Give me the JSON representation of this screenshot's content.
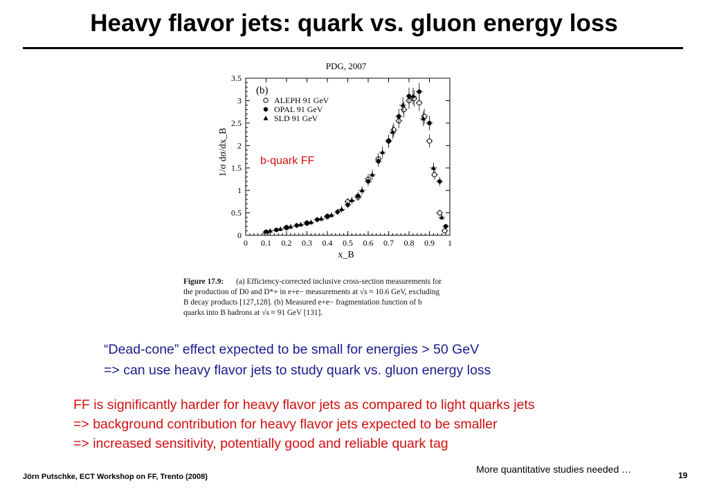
{
  "title": "Heavy flavor jets: quark vs. gluon energy loss",
  "figure": {
    "source": "PDG, 2007",
    "panel_label": "(b)",
    "annotation": "b-quark FF",
    "annotation_color": "#d01010",
    "caption_label": "Figure 17.9:",
    "caption_lines": [
      "(a) Efficiency-corrected inclusive cross-section measurements for",
      "the production of D0 and D*+ in e+e− measurements at √s ≈ 10.6 GeV, excluding",
      "B decay products [127,128].   (b) Measured e+e− fragmentation function of b",
      "quarks into B hadrons at √s ≈ 91 GeV [131]."
    ]
  },
  "chart_data": {
    "type": "scatter",
    "xlabel": "x_B",
    "ylabel": "1/σ dσ/dx_B",
    "xlim": [
      0,
      1
    ],
    "ylim": [
      0,
      3.5
    ],
    "x_ticks": [
      "0",
      "0.1",
      "0.2",
      "0.3",
      "0.4",
      "0.5",
      "0.6",
      "0.7",
      "0.8",
      "0.9",
      "1"
    ],
    "y_ticks": [
      "0",
      "0.5",
      "1",
      "1.5",
      "2",
      "2.5",
      "3",
      "3.5"
    ],
    "legend_position": "top-left",
    "series": [
      {
        "name": "ALEPH 91 GeV",
        "marker": "open-circle",
        "x": [
          0.1,
          0.2,
          0.3,
          0.4,
          0.5,
          0.55,
          0.6,
          0.65,
          0.7,
          0.725,
          0.75,
          0.775,
          0.8,
          0.825,
          0.85,
          0.875,
          0.9,
          0.925,
          0.95,
          0.975
        ],
        "y": [
          0.05,
          0.17,
          0.27,
          0.42,
          0.75,
          0.85,
          1.25,
          1.7,
          2.1,
          2.35,
          2.55,
          2.8,
          3.0,
          3.05,
          2.95,
          2.65,
          2.1,
          1.35,
          0.5,
          0.1
        ]
      },
      {
        "name": "OPAL 91 GeV",
        "marker": "filled-circle",
        "x": [
          0.1,
          0.15,
          0.2,
          0.25,
          0.3,
          0.35,
          0.4,
          0.45,
          0.5,
          0.55,
          0.6,
          0.65,
          0.7,
          0.75,
          0.8,
          0.85,
          0.9,
          0.95,
          0.98
        ],
        "y": [
          0.08,
          0.12,
          0.18,
          0.22,
          0.28,
          0.35,
          0.42,
          0.52,
          0.68,
          0.88,
          1.2,
          1.65,
          2.1,
          2.65,
          3.1,
          3.2,
          2.5,
          1.2,
          0.2
        ]
      },
      {
        "name": "SLD 91 GeV",
        "marker": "filled-triangle",
        "x": [
          0.12,
          0.17,
          0.22,
          0.27,
          0.32,
          0.37,
          0.42,
          0.47,
          0.52,
          0.57,
          0.62,
          0.67,
          0.72,
          0.77,
          0.82,
          0.87,
          0.92,
          0.96
        ],
        "y": [
          0.1,
          0.14,
          0.19,
          0.24,
          0.29,
          0.37,
          0.45,
          0.58,
          0.78,
          1.0,
          1.35,
          1.85,
          2.3,
          2.9,
          3.1,
          2.6,
          1.5,
          0.4
        ]
      }
    ]
  },
  "bullets_blue": [
    "“Dead-cone” effect expected to be small for energies > 50 GeV",
    "=> can use heavy flavor jets to study quark vs. gluon energy loss"
  ],
  "bullets_red": [
    "FF is significantly harder for heavy flavor jets as compared to light quarks jets",
    "=> background contribution for heavy flavor jets expected to be smaller",
    "=> increased sensitivity, potentially good and reliable  quark tag"
  ],
  "footer": {
    "author": "Jörn Putschke, ECT Workshop on FF, Trento (2008)",
    "note": "More quantitative studies needed …",
    "page": "19"
  }
}
